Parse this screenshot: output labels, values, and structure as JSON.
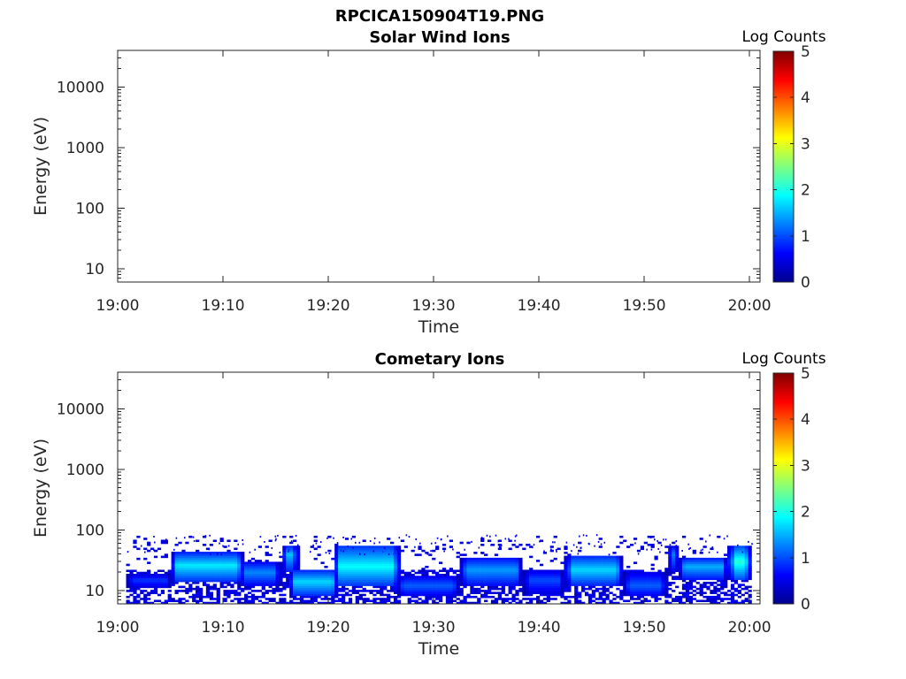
{
  "figure": {
    "file_title": "RPCICA150904T19.PNG"
  },
  "chart_data": [
    {
      "type": "heatmap",
      "title": "Solar Wind Ions",
      "xlabel": "Time",
      "ylabel": "Energy (eV)",
      "xlim": [
        "19:00",
        "20:01"
      ],
      "x_ticks": [
        "19:00",
        "19:10",
        "19:20",
        "19:30",
        "19:40",
        "19:50",
        "20:00"
      ],
      "x_tick_minutes": [
        0,
        10,
        20,
        30,
        40,
        50,
        60
      ],
      "ylim": [
        6,
        40000
      ],
      "yscale": "log",
      "y_ticks": [
        10,
        100,
        1000,
        10000
      ],
      "y_tick_labels": [
        "10",
        "100",
        "1000",
        "10000"
      ],
      "colorbar": {
        "label": "Log Counts",
        "range": [
          0,
          5
        ],
        "ticks": [
          "0",
          "1",
          "2",
          "3",
          "4",
          "5"
        ],
        "colormap": "jet"
      },
      "bands": []
    },
    {
      "type": "heatmap",
      "title": "Cometary Ions",
      "xlabel": "Time",
      "ylabel": "Energy (eV)",
      "xlim": [
        "19:00",
        "20:01"
      ],
      "x_ticks": [
        "19:00",
        "19:10",
        "19:20",
        "19:30",
        "19:40",
        "19:50",
        "20:00"
      ],
      "x_tick_minutes": [
        0,
        10,
        20,
        30,
        40,
        50,
        60
      ],
      "ylim": [
        6,
        40000
      ],
      "yscale": "log",
      "y_ticks": [
        10,
        100,
        1000,
        10000
      ],
      "y_tick_labels": [
        "10",
        "100",
        "1000",
        "10000"
      ],
      "colorbar": {
        "label": "Log Counts",
        "range": [
          0,
          5
        ],
        "ticks": [
          "0",
          "1",
          "2",
          "3",
          "4",
          "5"
        ],
        "colormap": "jet"
      },
      "data_time_range_minutes": [
        0.8,
        60.2
      ],
      "background_band": {
        "e_low": 6,
        "e_high": 80,
        "log_counts": 0.45
      },
      "sparse_counts_energy_range": [
        40,
        85
      ],
      "bands": [
        {
          "t_start": 0.8,
          "t_end": 5.2,
          "e_low": 11,
          "e_high": 19,
          "e_peak": 15,
          "peak_log_counts": 0.9
        },
        {
          "t_start": 5.0,
          "t_end": 12.0,
          "e_low": 14,
          "e_high": 42,
          "e_peak": 26,
          "peak_log_counts": 1.8
        },
        {
          "t_start": 11.5,
          "t_end": 15.5,
          "e_low": 12,
          "e_high": 30,
          "e_peak": 20,
          "peak_log_counts": 1.3
        },
        {
          "t_start": 15.5,
          "t_end": 17.2,
          "e_low": 20,
          "e_high": 55,
          "e_peak": 40,
          "peak_log_counts": 1.6
        },
        {
          "t_start": 16.2,
          "t_end": 21.0,
          "e_low": 8,
          "e_high": 22,
          "e_peak": 14,
          "peak_log_counts": 1.7
        },
        {
          "t_start": 20.5,
          "t_end": 26.8,
          "e_low": 12,
          "e_high": 55,
          "e_peak": 25,
          "peak_log_counts": 1.9
        },
        {
          "t_start": 26.5,
          "t_end": 32.5,
          "e_low": 8,
          "e_high": 18,
          "e_peak": 12,
          "peak_log_counts": 1.1
        },
        {
          "t_start": 32.5,
          "t_end": 38.5,
          "e_low": 12,
          "e_high": 35,
          "e_peak": 22,
          "peak_log_counts": 1.4
        },
        {
          "t_start": 38.5,
          "t_end": 42.5,
          "e_low": 9,
          "e_high": 22,
          "e_peak": 15,
          "peak_log_counts": 1.0
        },
        {
          "t_start": 42.5,
          "t_end": 48.0,
          "e_low": 12,
          "e_high": 38,
          "e_peak": 22,
          "peak_log_counts": 1.7
        },
        {
          "t_start": 48.0,
          "t_end": 52.2,
          "e_low": 8,
          "e_high": 20,
          "e_peak": 12,
          "peak_log_counts": 1.1
        },
        {
          "t_start": 52.3,
          "t_end": 53.2,
          "e_low": 20,
          "e_high": 55,
          "e_peak": 40,
          "peak_log_counts": 1.8
        },
        {
          "t_start": 53.2,
          "t_end": 58.0,
          "e_low": 15,
          "e_high": 35,
          "e_peak": 25,
          "peak_log_counts": 1.5
        },
        {
          "t_start": 58.0,
          "t_end": 60.2,
          "e_low": 15,
          "e_high": 55,
          "e_peak": 30,
          "peak_log_counts": 2.1
        }
      ]
    }
  ]
}
